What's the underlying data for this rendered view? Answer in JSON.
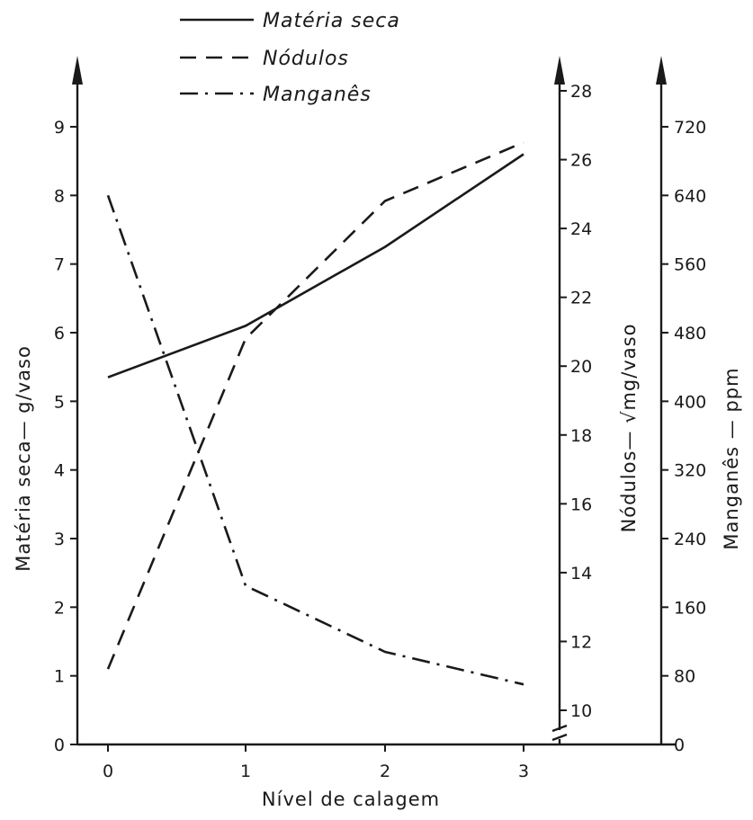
{
  "chart_data": {
    "type": "line",
    "x": [
      0,
      1,
      2,
      3
    ],
    "x_ticks": [
      "0",
      "1",
      "2",
      "3"
    ],
    "xlabel": "Nível de calagem",
    "axes": {
      "left": {
        "label": "Matéria seca— g/vaso",
        "ticks": [
          "0",
          "1",
          "2",
          "3",
          "4",
          "5",
          "6",
          "7",
          "8",
          "9"
        ],
        "range": [
          0,
          9
        ]
      },
      "middle": {
        "label": "Nódulos— √mg/vaso",
        "ticks": [
          "10",
          "12",
          "14",
          "16",
          "18",
          "20",
          "22",
          "24",
          "26",
          "28"
        ],
        "range": [
          10,
          28
        ],
        "break": true
      },
      "right": {
        "label": "Manganês — ppm",
        "ticks": [
          "0",
          "80",
          "160",
          "240",
          "320",
          "400",
          "480",
          "560",
          "640",
          "720"
        ],
        "range": [
          0,
          720
        ]
      }
    },
    "series": [
      {
        "name": "Matéria seca",
        "axis": "left",
        "style": "solid",
        "values": [
          5.35,
          6.1,
          7.25,
          8.6
        ]
      },
      {
        "name": "Nódulos",
        "axis": "middle",
        "style": "dashed",
        "values": [
          11.2,
          20.8,
          24.8,
          26.5
        ]
      },
      {
        "name": "Manganês",
        "axis": "right",
        "style": "dashdot",
        "values": [
          640,
          185,
          108,
          70
        ]
      }
    ],
    "legend_position": "top-center",
    "grid": false
  }
}
